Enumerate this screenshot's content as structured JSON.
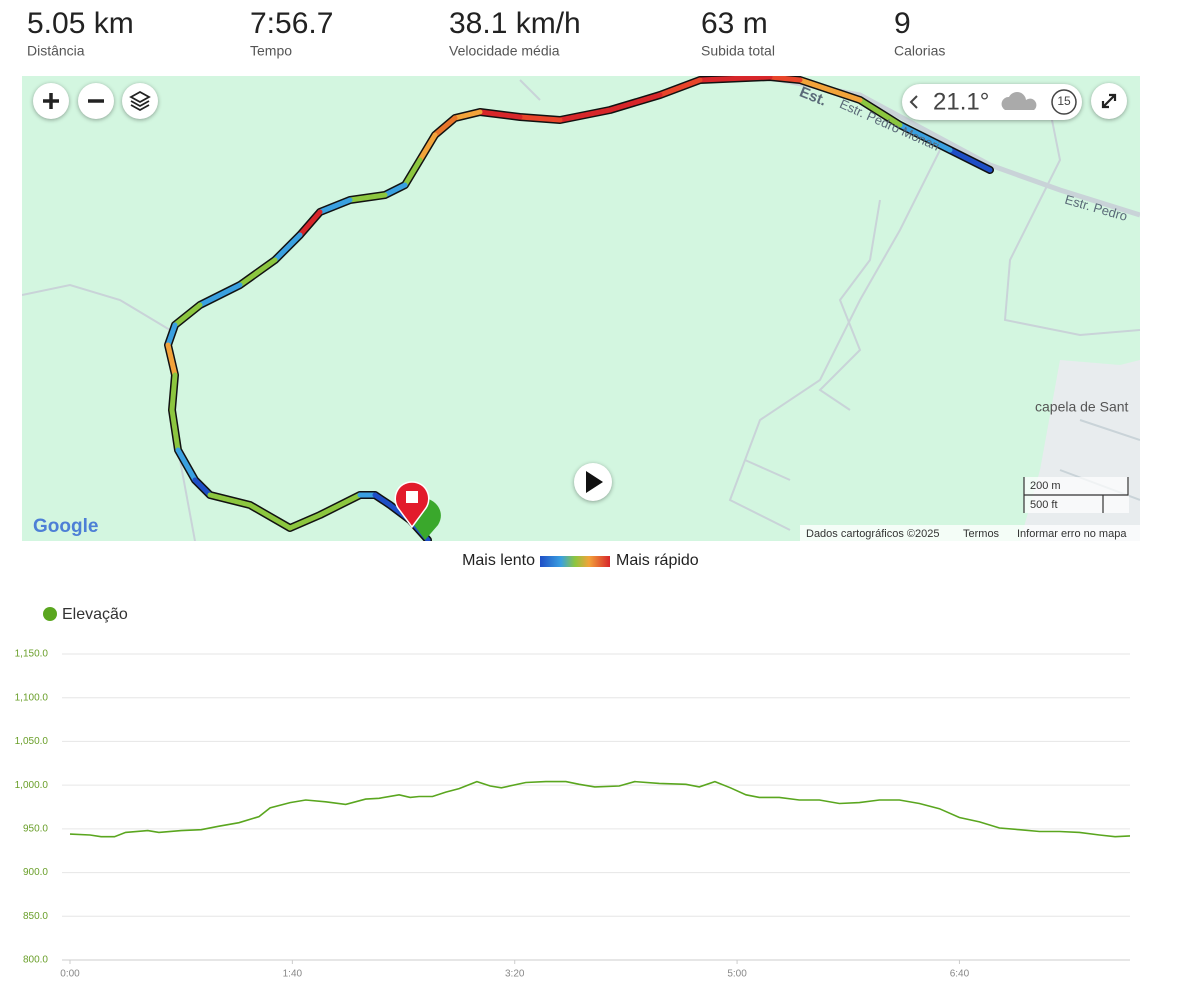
{
  "stats": [
    {
      "value": "5.05 km",
      "label": "Distância"
    },
    {
      "value": "7:56.7",
      "label": "Tempo"
    },
    {
      "value": "38.1 km/h",
      "label": "Velocidade média"
    },
    {
      "value": "63 m",
      "label": "Subida total"
    },
    {
      "value": "9",
      "label": "Calorias"
    }
  ],
  "map": {
    "road_labels": [
      "Est.",
      "Estr. Pedro Monari",
      "Estr. Pedro"
    ],
    "place_label": "capela de Sant",
    "temperature": "21.1°",
    "wind": "15",
    "scale": [
      "200 m",
      "500 ft"
    ],
    "logo": "Google",
    "attribution": [
      "Dados cartográficos ©2025",
      "Termos",
      "Informar erro no mapa"
    ]
  },
  "speed_legend": {
    "slow": "Mais lento",
    "fast": "Mais rápido"
  },
  "chart_data": {
    "type": "line",
    "x": [
      0,
      9,
      14,
      20,
      25,
      35,
      40,
      50,
      59,
      67,
      76,
      85,
      90,
      99,
      106,
      115,
      124,
      133,
      139,
      148,
      153,
      157,
      163,
      169,
      175,
      183,
      189,
      194,
      205,
      214,
      223,
      229,
      236,
      247,
      254,
      265,
      277,
      283,
      290,
      297,
      304,
      310,
      319,
      328,
      337,
      346,
      355,
      364,
      373,
      382,
      391,
      400,
      409,
      418,
      427,
      436,
      445,
      454,
      463,
      470,
      476.7
    ],
    "series": [
      {
        "name": "Elevação",
        "color": "#5aa61f",
        "values": [
          944,
          943,
          941,
          941,
          946,
          948,
          946,
          948,
          949,
          953,
          957,
          964,
          974,
          980,
          983,
          981,
          978,
          984,
          985,
          989,
          986,
          987,
          987,
          992,
          996,
          1004,
          999,
          997,
          1003,
          1004,
          1004,
          1001,
          998,
          999,
          1004,
          1002,
          1001,
          998,
          1004,
          997,
          989,
          986,
          986,
          983,
          983,
          979,
          980,
          983,
          983,
          979,
          973,
          963,
          958,
          951,
          949,
          947,
          947,
          946,
          943,
          941,
          942
        ]
      }
    ],
    "xlim": [
      0,
      476.7
    ],
    "xticks": [
      {
        "value": 0,
        "label": "0:00"
      },
      {
        "value": 100,
        "label": "1:40"
      },
      {
        "value": 200,
        "label": "3:20"
      },
      {
        "value": 300,
        "label": "5:00"
      },
      {
        "value": 400,
        "label": "6:40"
      }
    ],
    "ylim": [
      800,
      1150
    ],
    "yticks": [
      {
        "value": 800,
        "label": "800.0"
      },
      {
        "value": 850,
        "label": "850.0"
      },
      {
        "value": 900,
        "label": "900.0"
      },
      {
        "value": 950,
        "label": "950.0"
      },
      {
        "value": 1000,
        "label": "1,000.0"
      },
      {
        "value": 1050,
        "label": "1,050.0"
      },
      {
        "value": 1100,
        "label": "1,100.0"
      },
      {
        "value": 1150,
        "label": "1,150.0"
      }
    ],
    "grid": true
  }
}
